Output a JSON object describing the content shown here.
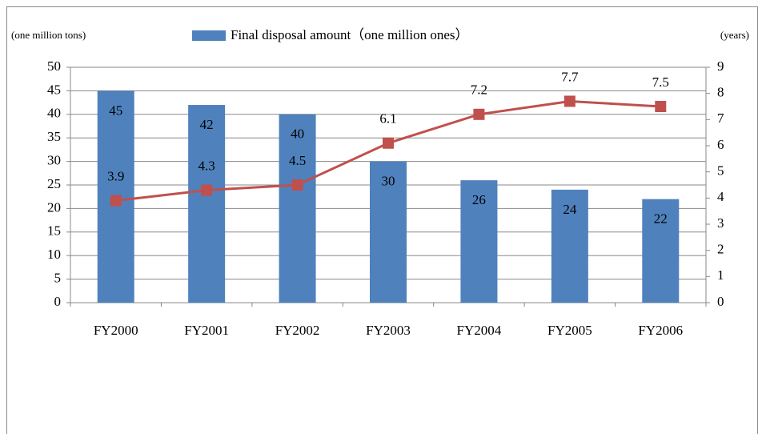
{
  "chart_data": {
    "type": "bar",
    "y_label": "(one million tons)",
    "y2_label": "(years)",
    "categories": [
      "FY2000",
      "FY2001",
      "FY2002",
      "FY2003",
      "FY2004",
      "FY2005",
      "FY2006"
    ],
    "series": [
      {
        "name": "Final disposal amount（one million ones）",
        "type": "bar",
        "color": "#4f81bd",
        "values": [
          45,
          42,
          40,
          30,
          26,
          24,
          22
        ]
      },
      {
        "type": "line",
        "axis": "y2",
        "color": "#c0504d",
        "values": [
          3.9,
          4.3,
          4.5,
          6.1,
          7.2,
          7.7,
          7.5
        ]
      }
    ],
    "ylim": [
      0,
      50
    ],
    "yticks": [
      0,
      5,
      10,
      15,
      20,
      25,
      30,
      35,
      40,
      45,
      50
    ],
    "y2lim": [
      0,
      9
    ],
    "y2ticks": [
      0,
      1,
      2,
      3,
      4,
      5,
      6,
      7,
      8,
      9
    ],
    "grid": true,
    "legend": "top"
  }
}
